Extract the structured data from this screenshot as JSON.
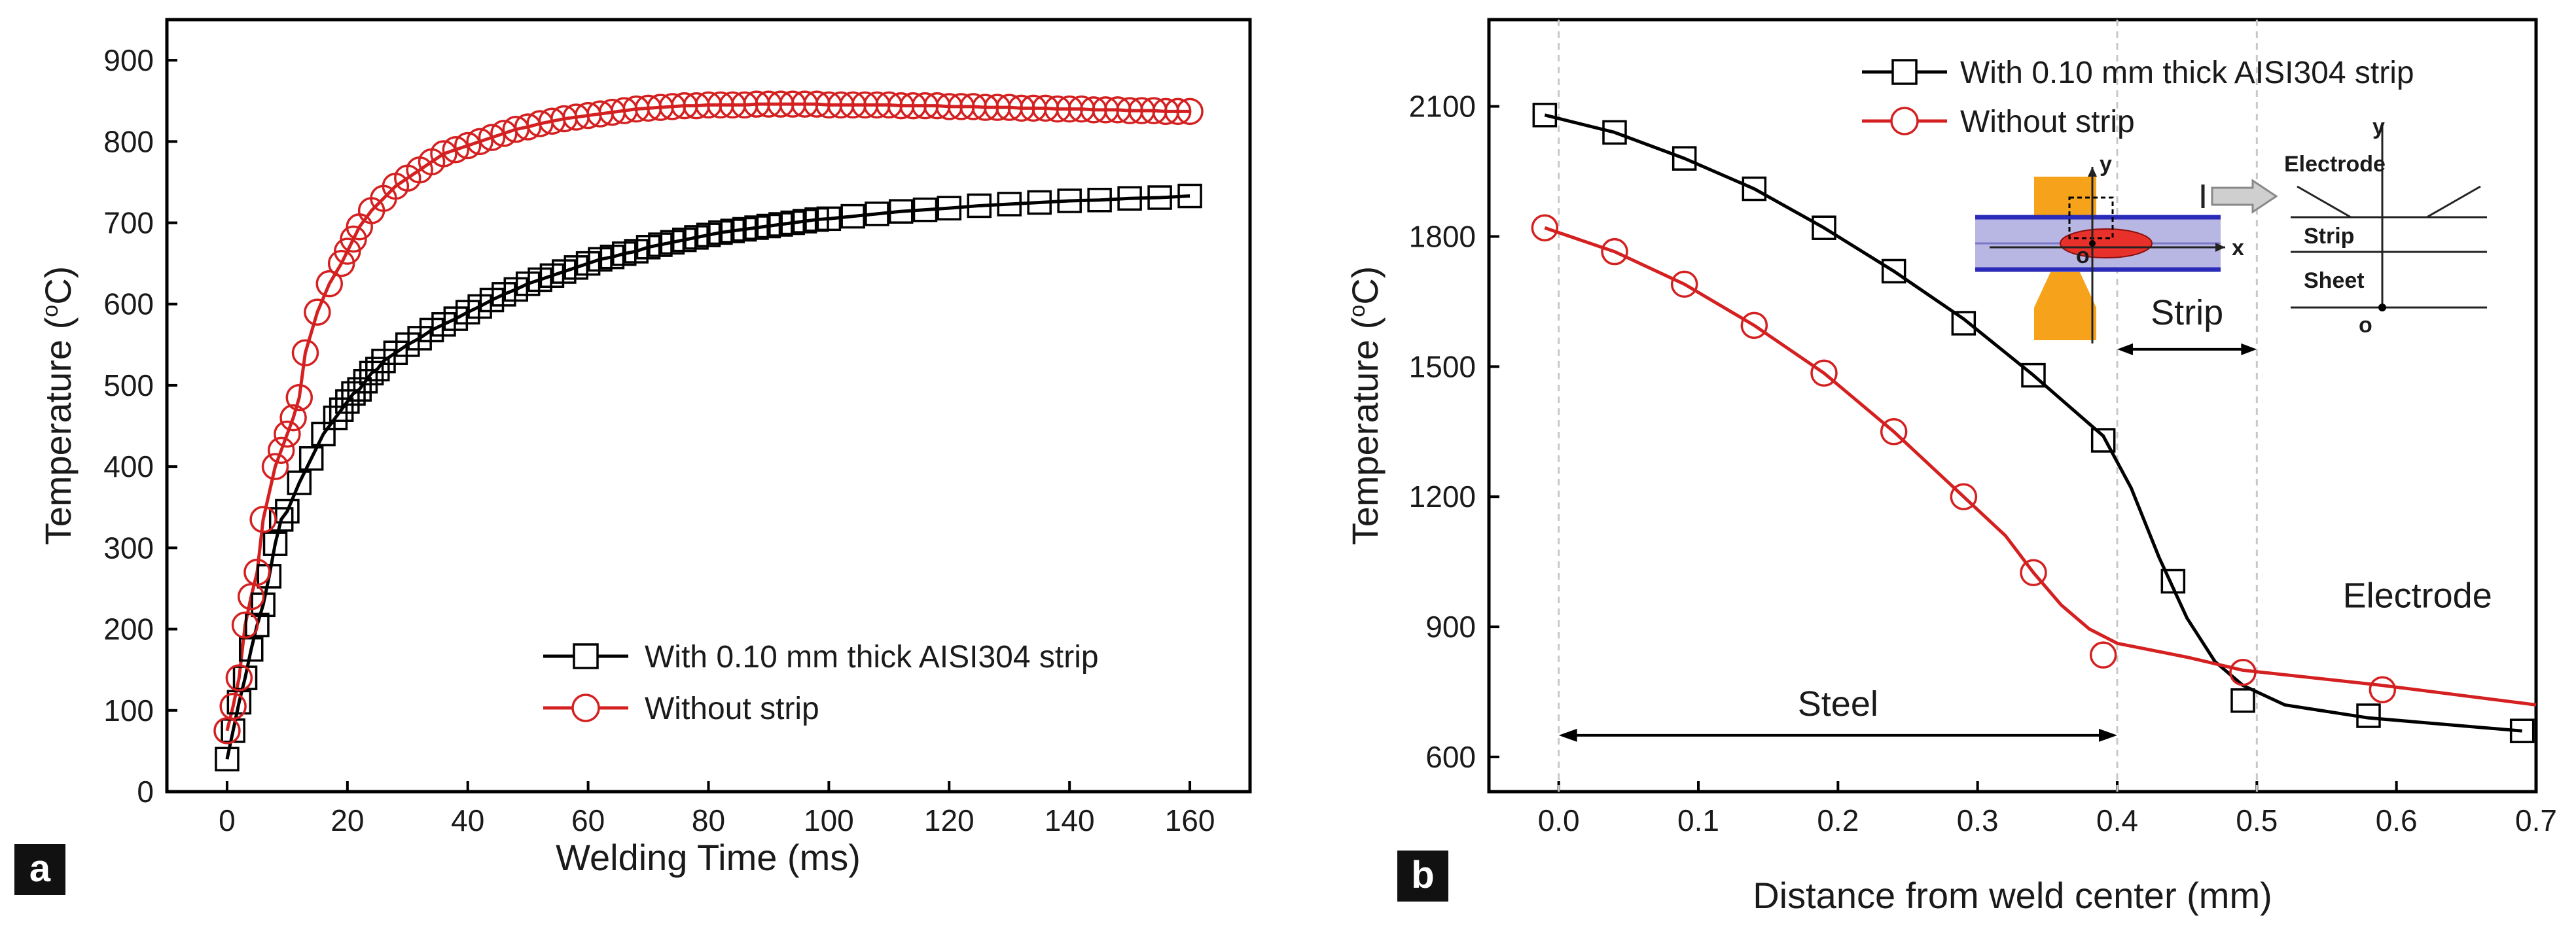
{
  "panel_labels": {
    "a": "a",
    "b": "b"
  },
  "chart_data": [
    {
      "type": "scatter",
      "panel": "a",
      "xlabel": "Welding Time (ms)",
      "ylabel_main": "Temperature (",
      "ylabel_sup": "o",
      "ylabel_tail": "C)",
      "xlim": [
        -10,
        170
      ],
      "ylim": [
        0,
        950
      ],
      "xticks": [
        0,
        20,
        40,
        60,
        80,
        100,
        120,
        140,
        160
      ],
      "yticks": [
        0,
        100,
        200,
        300,
        400,
        500,
        600,
        700,
        800,
        900
      ],
      "legend_position": "bottom-right",
      "series": [
        {
          "name": "With 0.10 mm thick AISI304 strip",
          "marker": "square",
          "color": "#000000",
          "x": [
            0,
            1,
            2,
            3,
            4,
            5,
            6,
            7,
            8,
            9,
            10,
            12,
            14,
            16,
            18,
            19,
            20,
            21,
            22,
            23,
            24,
            25,
            26,
            28,
            30,
            32,
            34,
            36,
            38,
            40,
            42,
            44,
            46,
            48,
            50,
            52,
            54,
            56,
            58,
            60,
            62,
            64,
            66,
            68,
            70,
            72,
            74,
            76,
            78,
            80,
            82,
            84,
            86,
            88,
            90,
            92,
            94,
            96,
            98,
            100,
            104,
            108,
            112,
            116,
            120,
            125,
            130,
            135,
            140,
            145,
            150,
            155,
            160
          ],
          "values": [
            40,
            75,
            110,
            140,
            175,
            205,
            230,
            265,
            305,
            335,
            345,
            380,
            410,
            440,
            460,
            470,
            480,
            490,
            495,
            505,
            515,
            520,
            530,
            540,
            550,
            558,
            568,
            575,
            582,
            590,
            597,
            605,
            612,
            618,
            625,
            630,
            635,
            640,
            645,
            650,
            655,
            658,
            662,
            665,
            670,
            673,
            676,
            679,
            682,
            685,
            688,
            690,
            692,
            694,
            696,
            698,
            700,
            702,
            704,
            705,
            708,
            711,
            714,
            716,
            718,
            721,
            723,
            725,
            727,
            728,
            730,
            731,
            733
          ]
        },
        {
          "name": "Without strip",
          "marker": "circle",
          "color": "#d42020",
          "x": [
            0,
            1,
            2,
            3,
            4,
            5,
            6,
            8,
            9,
            10,
            11,
            12,
            13,
            15,
            17,
            19,
            20,
            21,
            22,
            24,
            26,
            28,
            30,
            32,
            34,
            36,
            38,
            40,
            42,
            44,
            46,
            48,
            50,
            52,
            54,
            56,
            58,
            60,
            62,
            64,
            66,
            68,
            70,
            72,
            74,
            76,
            78,
            80,
            82,
            84,
            86,
            88,
            90,
            92,
            94,
            96,
            98,
            100,
            102,
            104,
            106,
            108,
            110,
            112,
            114,
            116,
            118,
            120,
            122,
            124,
            126,
            128,
            130,
            132,
            134,
            136,
            138,
            140,
            142,
            144,
            146,
            148,
            150,
            152,
            154,
            156,
            158,
            160
          ],
          "values": [
            75,
            105,
            140,
            205,
            240,
            270,
            335,
            400,
            420,
            440,
            460,
            485,
            540,
            590,
            625,
            650,
            665,
            680,
            695,
            715,
            730,
            745,
            755,
            765,
            775,
            785,
            790,
            795,
            800,
            805,
            810,
            815,
            818,
            822,
            825,
            828,
            830,
            832,
            834,
            836,
            838,
            840,
            841,
            842,
            843,
            844,
            844,
            845,
            845,
            845,
            845,
            846,
            846,
            846,
            846,
            846,
            846,
            845,
            845,
            845,
            845,
            845,
            845,
            844,
            844,
            844,
            844,
            843,
            843,
            843,
            842,
            842,
            842,
            841,
            841,
            841,
            840,
            840,
            840,
            839,
            839,
            839,
            838,
            838,
            838,
            837,
            837,
            837
          ]
        }
      ]
    },
    {
      "type": "line",
      "panel": "b",
      "xlabel": "Distance from weld center (mm)",
      "ylabel_main": "Temperature (",
      "ylabel_sup": "o",
      "ylabel_tail": "C)",
      "xlim": [
        -0.05,
        0.7
      ],
      "ylim": [
        520,
        2300
      ],
      "xticks": [
        0.0,
        0.1,
        0.2,
        0.3,
        0.4,
        0.5,
        0.6,
        0.7
      ],
      "xtick_labels": [
        "0.0",
        "0.1",
        "0.2",
        "0.3",
        "0.4",
        "0.5",
        "0.6",
        "0.7"
      ],
      "yticks": [
        600,
        900,
        1200,
        1500,
        1800,
        2100
      ],
      "legend_position": "top-center",
      "series": [
        {
          "name": "With 0.10 mm thick AISI304 strip",
          "marker": "square",
          "color": "#000000",
          "x": [
            -0.01,
            0.04,
            0.09,
            0.14,
            0.19,
            0.24,
            0.29,
            0.34,
            0.39,
            0.44,
            0.49,
            0.58,
            0.69
          ],
          "values": [
            2080,
            2040,
            1980,
            1910,
            1820,
            1720,
            1600,
            1480,
            1330,
            1005,
            730,
            695,
            660
          ],
          "curve_x": [
            -0.01,
            0.04,
            0.09,
            0.14,
            0.19,
            0.24,
            0.29,
            0.34,
            0.39,
            0.41,
            0.43,
            0.45,
            0.47,
            0.49,
            0.52,
            0.58,
            0.69
          ],
          "curve_y": [
            2080,
            2040,
            1980,
            1910,
            1820,
            1720,
            1610,
            1480,
            1340,
            1220,
            1060,
            920,
            820,
            765,
            720,
            690,
            660
          ]
        },
        {
          "name": "Without strip",
          "marker": "circle",
          "color": "#d42020",
          "x": [
            -0.01,
            0.04,
            0.09,
            0.14,
            0.19,
            0.24,
            0.29,
            0.34,
            0.39,
            0.49,
            0.59
          ],
          "values": [
            1820,
            1765,
            1690,
            1595,
            1485,
            1350,
            1200,
            1025,
            835,
            795,
            755
          ],
          "curve_x": [
            -0.01,
            0.04,
            0.09,
            0.14,
            0.19,
            0.24,
            0.29,
            0.32,
            0.34,
            0.36,
            0.38,
            0.4,
            0.45,
            0.49,
            0.59,
            0.7
          ],
          "curve_y": [
            1820,
            1765,
            1690,
            1595,
            1485,
            1350,
            1200,
            1110,
            1025,
            950,
            895,
            862,
            830,
            800,
            765,
            720
          ]
        }
      ],
      "annotations": {
        "steel": "Steel",
        "strip": "Strip",
        "electrode": "Electrode",
        "steel_span": [
          0.0,
          0.4
        ],
        "strip_span": [
          0.4,
          0.5
        ],
        "guide_lines_x": [
          0.0,
          0.4,
          0.5
        ]
      },
      "inset": {
        "x_axis": "x",
        "y_axis": "y",
        "origin": "o",
        "electrode": "Electrode",
        "strip": "Strip",
        "sheet": "Sheet"
      }
    }
  ]
}
